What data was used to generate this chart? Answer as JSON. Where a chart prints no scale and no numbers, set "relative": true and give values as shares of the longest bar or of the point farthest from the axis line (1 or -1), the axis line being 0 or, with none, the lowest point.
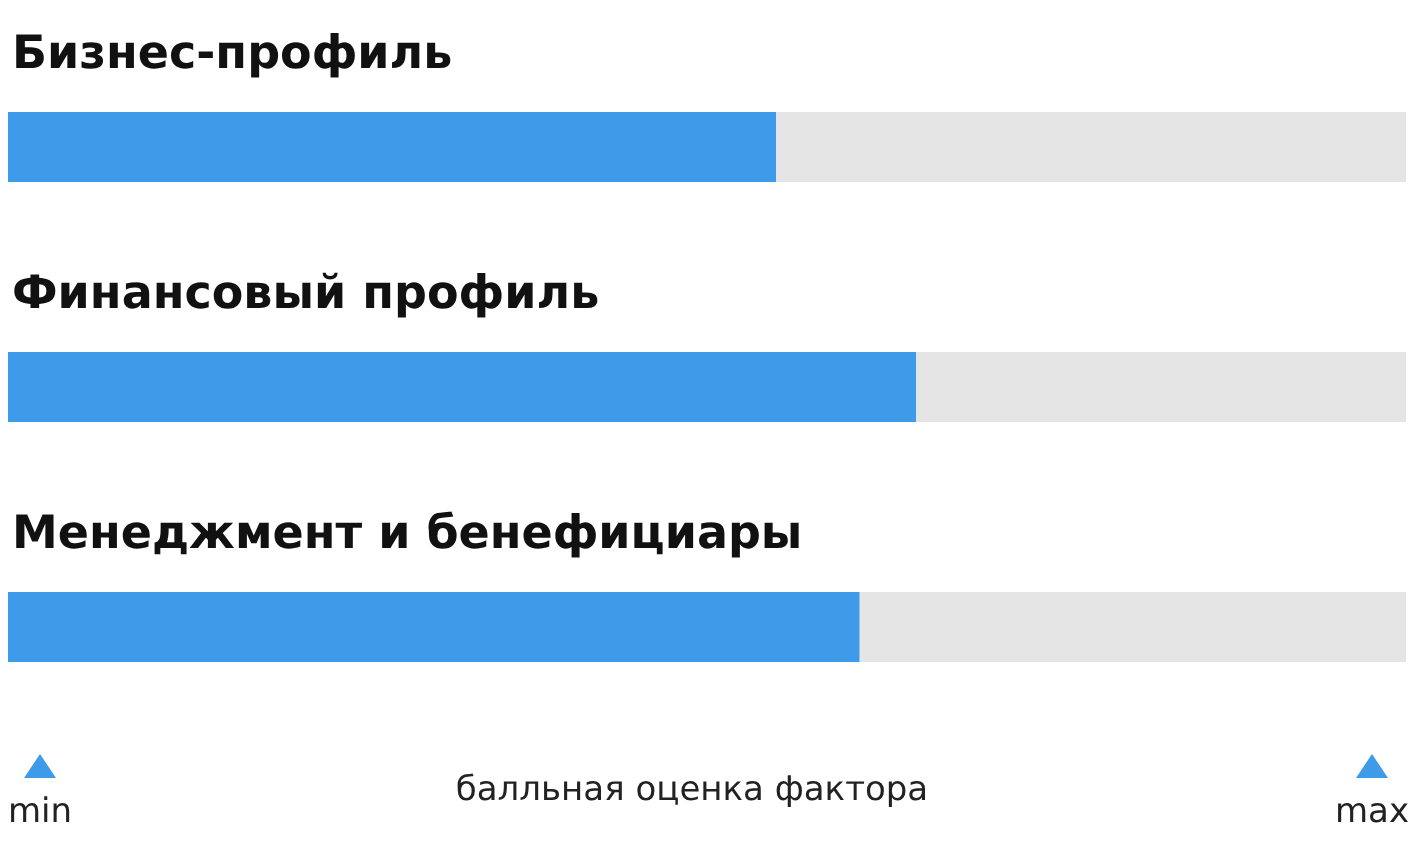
{
  "chart_data": {
    "type": "bar",
    "orientation": "horizontal",
    "relative": true,
    "categories": [
      "Бизнес-профиль",
      "Финансовый профиль",
      "Менеджмент и бенефициары"
    ],
    "values": [
      0.846,
      1,
      0.938
    ],
    "color": "#3d9be9",
    "xlabel": "балльная оценка фактора",
    "annotations": [
      "min",
      "max"
    ]
  }
}
